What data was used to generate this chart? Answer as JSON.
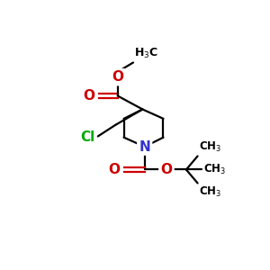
{
  "bg_color": "#FFFFFF",
  "bond_color": "#000000",
  "oxygen_color": "#CC0000",
  "nitrogen_color": "#3333CC",
  "chlorine_color": "#00AA00",
  "line_width": 1.6,
  "figsize": [
    3.0,
    3.0
  ],
  "dpi": 100,
  "xlim": [
    0,
    10
  ],
  "ylim": [
    0,
    10
  ]
}
